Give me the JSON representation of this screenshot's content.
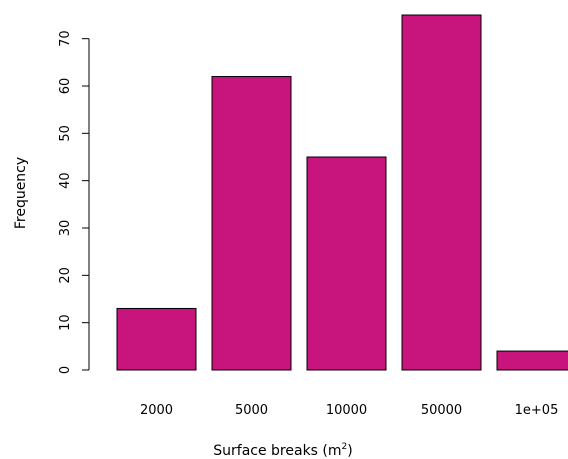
{
  "chart_data": {
    "type": "bar",
    "categories": [
      "2000",
      "5000",
      "10000",
      "50000",
      "1e+05"
    ],
    "values": [
      13,
      62,
      45,
      75,
      4
    ],
    "xlabel": "Surface breaks (m",
    "xlabel_superscript": "2",
    "xlabel_suffix": ")",
    "ylabel": "Frequency",
    "yticks": [
      "0",
      "10",
      "20",
      "30",
      "40",
      "50",
      "60",
      "70"
    ],
    "ylim": [
      0,
      75
    ],
    "bar_color": "#c8157e",
    "grid": false
  }
}
